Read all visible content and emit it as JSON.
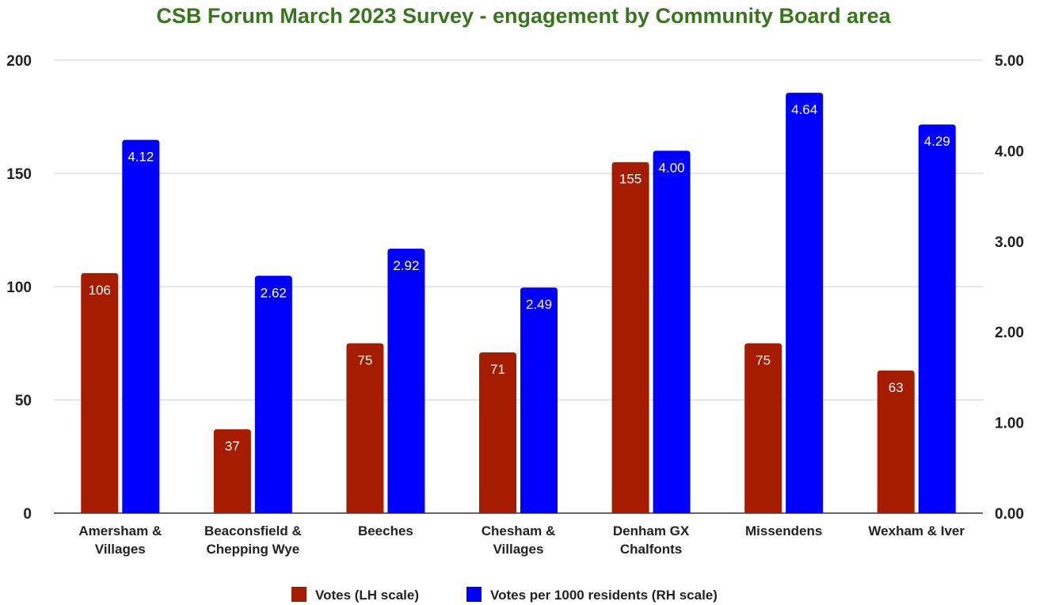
{
  "chart_data": {
    "type": "bar",
    "title": "CSB Forum March 2023 Survey - engagement by Community Board area",
    "categories": [
      [
        "Amersham &",
        "Villages"
      ],
      [
        "Beaconsfield &",
        "Chepping Wye"
      ],
      [
        "Beeches"
      ],
      [
        "Chesham &",
        "Villages"
      ],
      [
        "Denham GX",
        "Chalfonts"
      ],
      [
        "Missendens"
      ],
      [
        "Wexham & Iver"
      ]
    ],
    "series": [
      {
        "name": "Votes (LH scale)",
        "axis": "left",
        "color": "#a61c00",
        "values": [
          106,
          37,
          75,
          71,
          155,
          75,
          63
        ],
        "labels": [
          "106",
          "37",
          "75",
          "71",
          "155",
          "75",
          "63"
        ]
      },
      {
        "name": "Votes per 1000 residents (RH scale)",
        "axis": "right",
        "color": "#0000ff",
        "values": [
          4.12,
          2.62,
          2.92,
          2.49,
          4.0,
          4.64,
          4.29
        ],
        "labels": [
          "4.12",
          "2.62",
          "2.92",
          "2.49",
          "4.00",
          "4.64",
          "4.29"
        ]
      }
    ],
    "y_left": {
      "range": [
        0,
        200
      ],
      "ticks": [
        0,
        50,
        100,
        150,
        200
      ],
      "tick_labels": [
        "0",
        "50",
        "100",
        "150",
        "200"
      ]
    },
    "y_right": {
      "range": [
        0,
        5
      ],
      "ticks": [
        0,
        1,
        2,
        3,
        4,
        5
      ],
      "tick_labels": [
        "0.00",
        "1.00",
        "2.00",
        "3.00",
        "4.00",
        "5.00"
      ]
    },
    "grid": true,
    "legend_position": "bottom",
    "title_color": "#38761d"
  }
}
